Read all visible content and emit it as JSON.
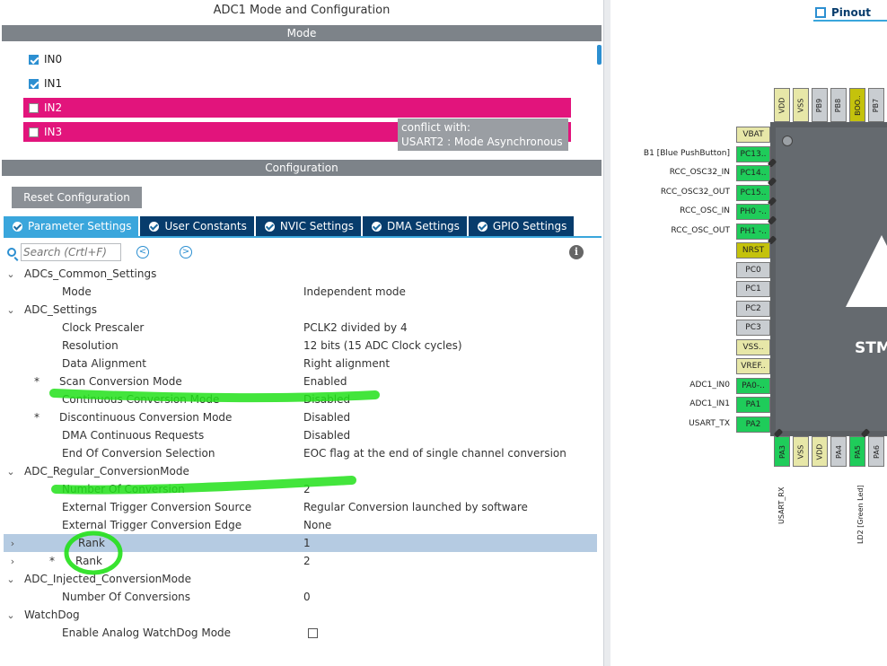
{
  "header": {
    "title": "ADC1 Mode and Configuration"
  },
  "mode": {
    "bar_label": "Mode",
    "items": [
      {
        "label": "IN0",
        "checked": true
      },
      {
        "label": "IN1",
        "checked": true
      },
      {
        "label": "IN2",
        "checked": false,
        "conflict": true
      },
      {
        "label": "IN3",
        "checked": false,
        "conflict": true
      }
    ],
    "tooltip": {
      "line1": "conflict with:",
      "line2": "USART2 : Mode Asynchronous"
    }
  },
  "config": {
    "bar_label": "Configuration",
    "reset_label": "Reset Configuration",
    "tabs": [
      {
        "label": "Parameter Settings",
        "active": true
      },
      {
        "label": "User Constants"
      },
      {
        "label": "NVIC Settings"
      },
      {
        "label": "DMA Settings"
      },
      {
        "label": "GPIO Settings"
      }
    ],
    "search_placeholder": "Search (Crtl+F)",
    "info": "i"
  },
  "params": {
    "groups": {
      "common": "ADCs_Common_Settings",
      "adc": "ADC_Settings",
      "regular": "ADC_Regular_ConversionMode",
      "injected": "ADC_Injected_ConversionMode",
      "watchdog": "WatchDog"
    },
    "rows": {
      "mode": {
        "name": "Mode",
        "value": "Independent mode"
      },
      "clock": {
        "name": "Clock Prescaler",
        "value": "PCLK2 divided by 4"
      },
      "resolution": {
        "name": "Resolution",
        "value": "12 bits (15 ADC Clock cycles)"
      },
      "align": {
        "name": "Data Alignment",
        "value": "Right alignment"
      },
      "scan": {
        "name": "Scan Conversion Mode",
        "value": "Enabled"
      },
      "continuous": {
        "name": "Continuous Conversion Mode",
        "value": "Disabled"
      },
      "discontinuous": {
        "name": "Discontinuous Conversion Mode",
        "value": "Disabled"
      },
      "dma": {
        "name": "DMA Continuous Requests",
        "value": "Disabled"
      },
      "eoc": {
        "name": "End Of Conversion Selection",
        "value": "EOC flag at the end of single channel conversion"
      },
      "numconv": {
        "name": "Number Of Conversion",
        "value": "2"
      },
      "trigsrc": {
        "name": "External Trigger Conversion Source",
        "value": "Regular Conversion launched by software"
      },
      "trigedge": {
        "name": "External Trigger Conversion Edge",
        "value": "None"
      },
      "rank1": {
        "name": "Rank",
        "value": "1"
      },
      "rank2": {
        "name": "Rank",
        "value": "2"
      },
      "injnum": {
        "name": "Number Of Conversions",
        "value": "0"
      },
      "wdg": {
        "name": "Enable Analog WatchDog Mode",
        "checked": false
      }
    },
    "star": "*"
  },
  "pinout": {
    "tab_label": "Pinout",
    "chip_text": "STM",
    "left_pins": [
      {
        "pin": "VBAT",
        "label": "",
        "color": "yellow"
      },
      {
        "pin": "PC13..",
        "label": "B1 [Blue PushButton]",
        "color": "green"
      },
      {
        "pin": "PC14..",
        "label": "RCC_OSC32_IN",
        "color": "green"
      },
      {
        "pin": "PC15..",
        "label": "RCC_OSC32_OUT",
        "color": "green"
      },
      {
        "pin": "PH0 -..",
        "label": "RCC_OSC_IN",
        "color": "green"
      },
      {
        "pin": "PH1 -..",
        "label": "RCC_OSC_OUT",
        "color": "green"
      },
      {
        "pin": "NRST",
        "label": "",
        "color": "olive"
      },
      {
        "pin": "PC0",
        "label": "",
        "color": "gray"
      },
      {
        "pin": "PC1",
        "label": "",
        "color": "gray"
      },
      {
        "pin": "PC2",
        "label": "",
        "color": "gray"
      },
      {
        "pin": "PC3",
        "label": "",
        "color": "gray"
      },
      {
        "pin": "VSS..",
        "label": "",
        "color": "yellow"
      },
      {
        "pin": "VREF..",
        "label": "",
        "color": "yellow"
      },
      {
        "pin": "PA0-..",
        "label": "ADC1_IN0",
        "color": "green"
      },
      {
        "pin": "PA1",
        "label": "ADC1_IN1",
        "color": "green"
      },
      {
        "pin": "PA2",
        "label": "USART_TX",
        "color": "green"
      }
    ],
    "top_pins": [
      {
        "pin": "VDD",
        "color": "yellow"
      },
      {
        "pin": "VSS",
        "color": "yellow"
      },
      {
        "pin": "PB9",
        "color": "gray"
      },
      {
        "pin": "PB8",
        "color": "gray"
      },
      {
        "pin": "BOO..",
        "color": "olive"
      },
      {
        "pin": "PB7",
        "color": "gray"
      }
    ],
    "bottom_pins": [
      {
        "pin": "PA3",
        "color": "green"
      },
      {
        "pin": "VSS",
        "color": "yellow"
      },
      {
        "pin": "VDD",
        "color": "yellow"
      },
      {
        "pin": "PA4",
        "color": "gray"
      },
      {
        "pin": "PA5",
        "color": "green"
      },
      {
        "pin": "PA6",
        "color": "gray"
      }
    ],
    "bottom_labels": {
      "pa3": "USART_RX",
      "pa5": "LD2 [Green Led]"
    }
  },
  "colors": {
    "conflict": "#e2147c",
    "tab_active": "#3aa6dc",
    "tab_dark": "#073c6c",
    "pin_green": "#1fcc5a",
    "annotation": "#22e01a"
  }
}
